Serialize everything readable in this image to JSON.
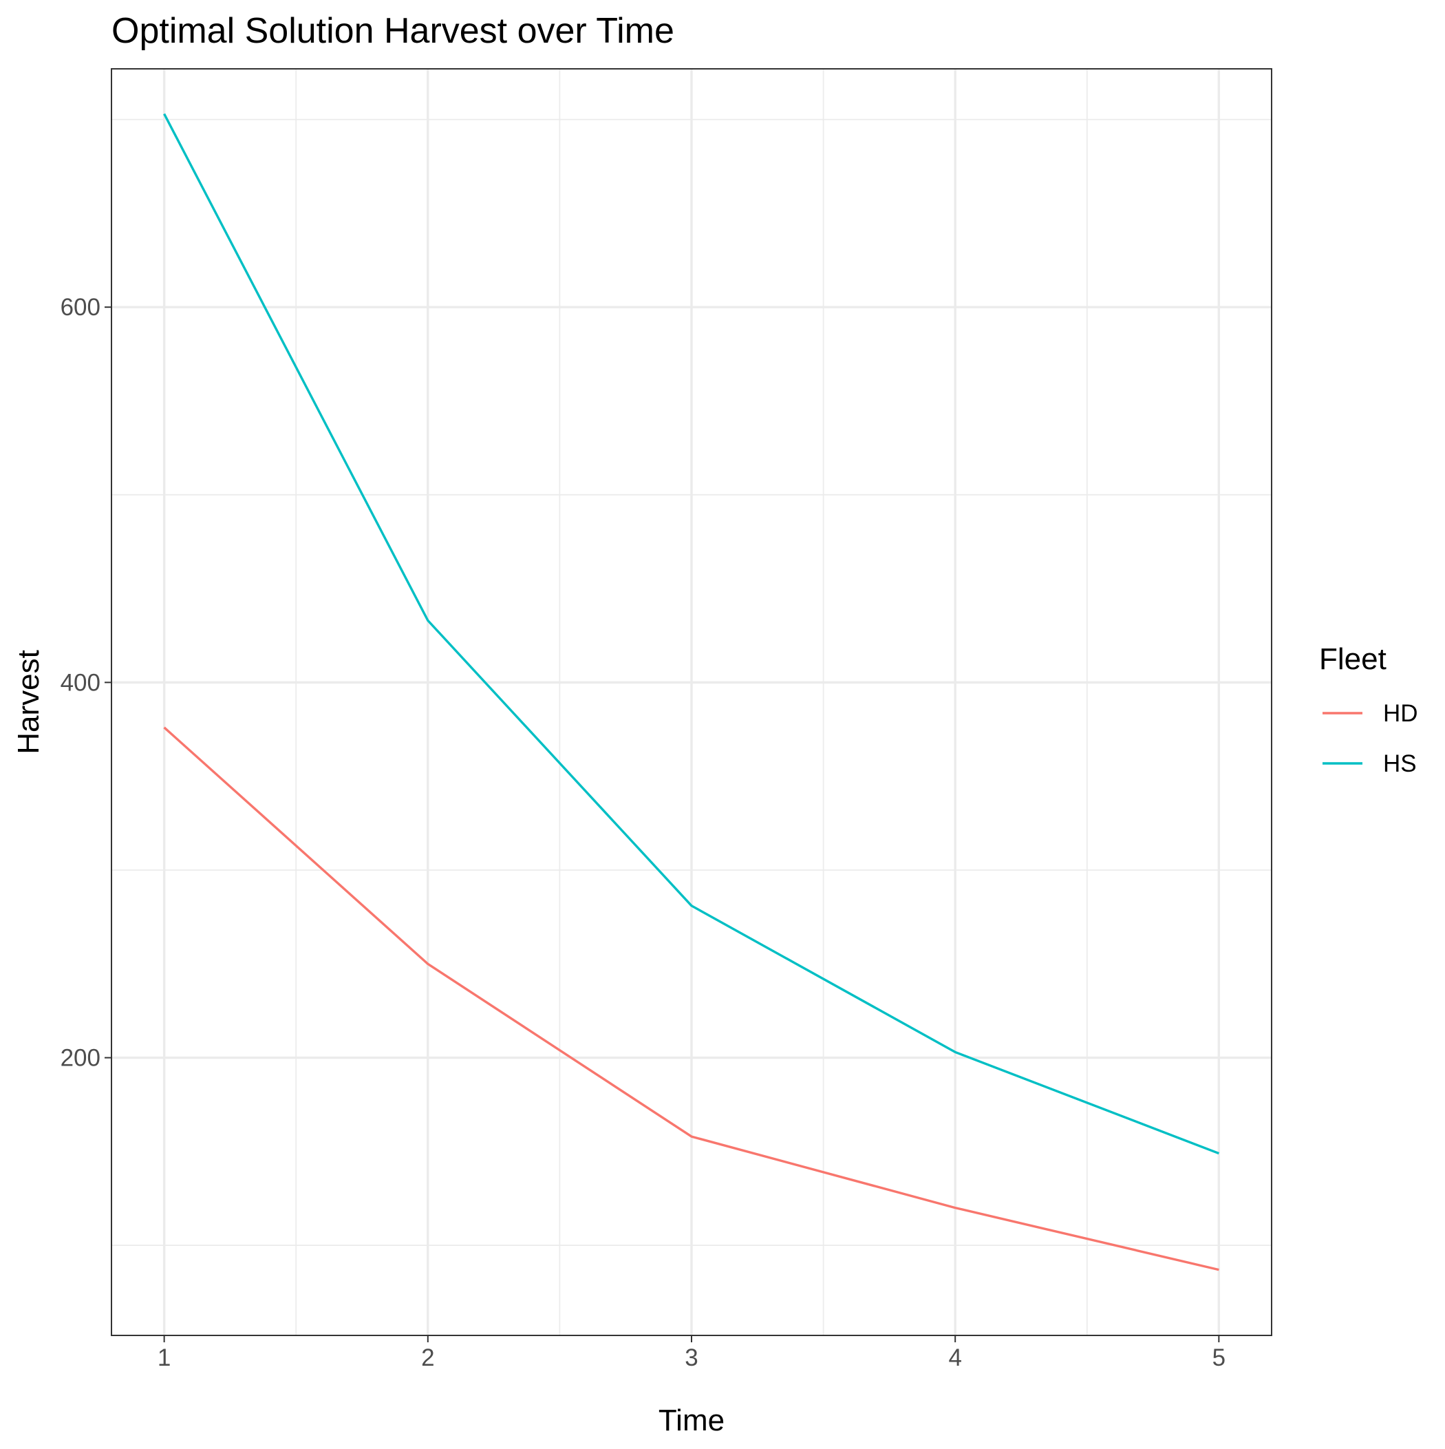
{
  "chart_data": {
    "type": "line",
    "title": "Optimal Solution Harvest over Time",
    "xlabel": "Time",
    "ylabel": "Harvest",
    "x": [
      1,
      2,
      3,
      4,
      5
    ],
    "xlim": [
      0.8,
      5.2
    ],
    "ylim": [
      52,
      727
    ],
    "x_ticks": [
      1,
      2,
      3,
      4,
      5
    ],
    "y_ticks": [
      200,
      400,
      600
    ],
    "grid": true,
    "legend": {
      "title": "Fleet",
      "position": "right"
    },
    "series": [
      {
        "name": "HD",
        "color": "#F8766D",
        "values": [
          376,
          250,
          158,
          120,
          87
        ]
      },
      {
        "name": "HS",
        "color": "#00BFC4",
        "values": [
          703,
          433,
          281,
          203,
          149
        ]
      }
    ]
  }
}
